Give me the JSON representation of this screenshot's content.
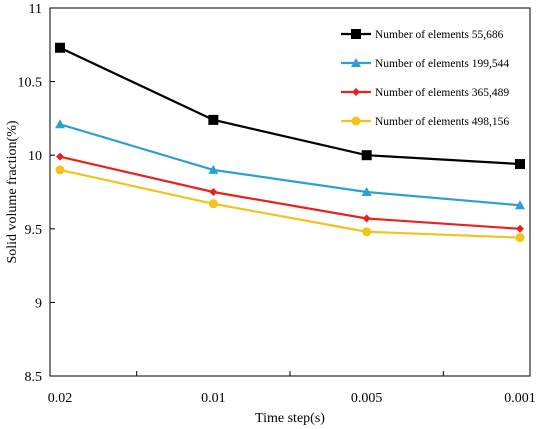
{
  "chart_data": {
    "type": "line",
    "x": [
      "0.02",
      "0.01",
      "0.005",
      "0.001"
    ],
    "xlabel": "Time step(s)",
    "ylabel": "Solid volume fraction(%)",
    "ylim": [
      8.5,
      11
    ],
    "yticks": [
      "8.5",
      "9",
      "9.5",
      "10",
      "10.5",
      "11"
    ],
    "grid": false,
    "legend_position": "top-right",
    "series": [
      {
        "name": "Number of elements 55,686",
        "color": "#000000",
        "marker": "square",
        "values": [
          10.73,
          10.24,
          10.0,
          9.94
        ]
      },
      {
        "name": "Number of elements 199,544",
        "color": "#2e9fd0",
        "marker": "triangle",
        "values": [
          10.21,
          9.9,
          9.75,
          9.66
        ]
      },
      {
        "name": "Number of elements 365,489",
        "color": "#e8231f",
        "marker": "diamond",
        "values": [
          9.99,
          9.75,
          9.57,
          9.5
        ]
      },
      {
        "name": "Number of elements 498,156",
        "color": "#f2c318",
        "marker": "circle",
        "values": [
          9.9,
          9.67,
          9.48,
          9.44
        ]
      }
    ]
  }
}
